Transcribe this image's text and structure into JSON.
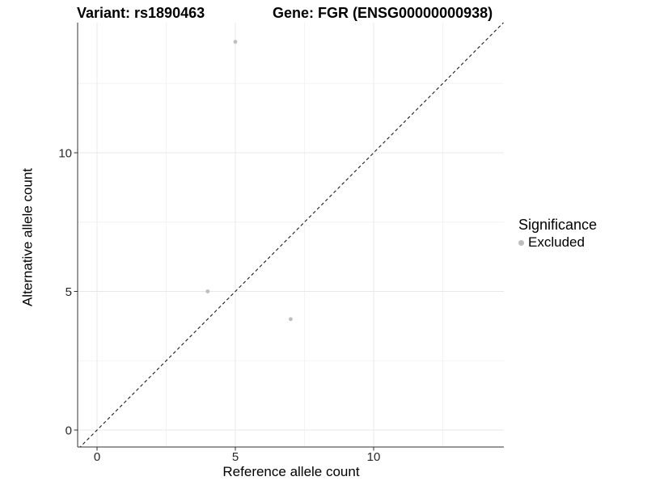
{
  "figure": {
    "title_left": "Variant: rs1890463",
    "title_right": "Gene: FGR (ENSG00000000938)"
  },
  "chart_data": {
    "type": "scatter",
    "title": "Variant: rs1890463   Gene: FGR (ENSG00000000938)",
    "xlabel": "Reference allele count",
    "ylabel": "Alternative allele count",
    "xlim": [
      -0.7,
      14.7
    ],
    "ylim": [
      -0.6,
      14.7
    ],
    "x_ticks": [
      0,
      5,
      10
    ],
    "y_ticks": [
      0,
      5,
      10
    ],
    "x_minor_gridlines": [
      2.5,
      7.5,
      12.5
    ],
    "y_minor_gridlines": [
      2.5,
      7.5,
      12.5
    ],
    "grid": true,
    "series": [
      {
        "name": "Excluded",
        "color": "#bebebe",
        "points": [
          {
            "x": 4,
            "y": 5
          },
          {
            "x": 7,
            "y": 4
          },
          {
            "x": 5,
            "y": 14
          }
        ]
      }
    ],
    "reference_line": {
      "type": "abline",
      "slope": 1,
      "intercept": 0,
      "style": "dashed",
      "color": "#1a1a1a"
    },
    "legend": {
      "title": "Significance",
      "position": "right",
      "items": [
        {
          "label": "Excluded",
          "color": "#bebebe"
        }
      ]
    }
  },
  "colors": {
    "point": "#bebebe",
    "grid_major": "#e8e8e8",
    "grid_minor": "#f3f3f3",
    "axis_line": "#303030",
    "tick_text": "#262626",
    "dashed_line": "#1a1a1a",
    "background": "#ffffff"
  }
}
